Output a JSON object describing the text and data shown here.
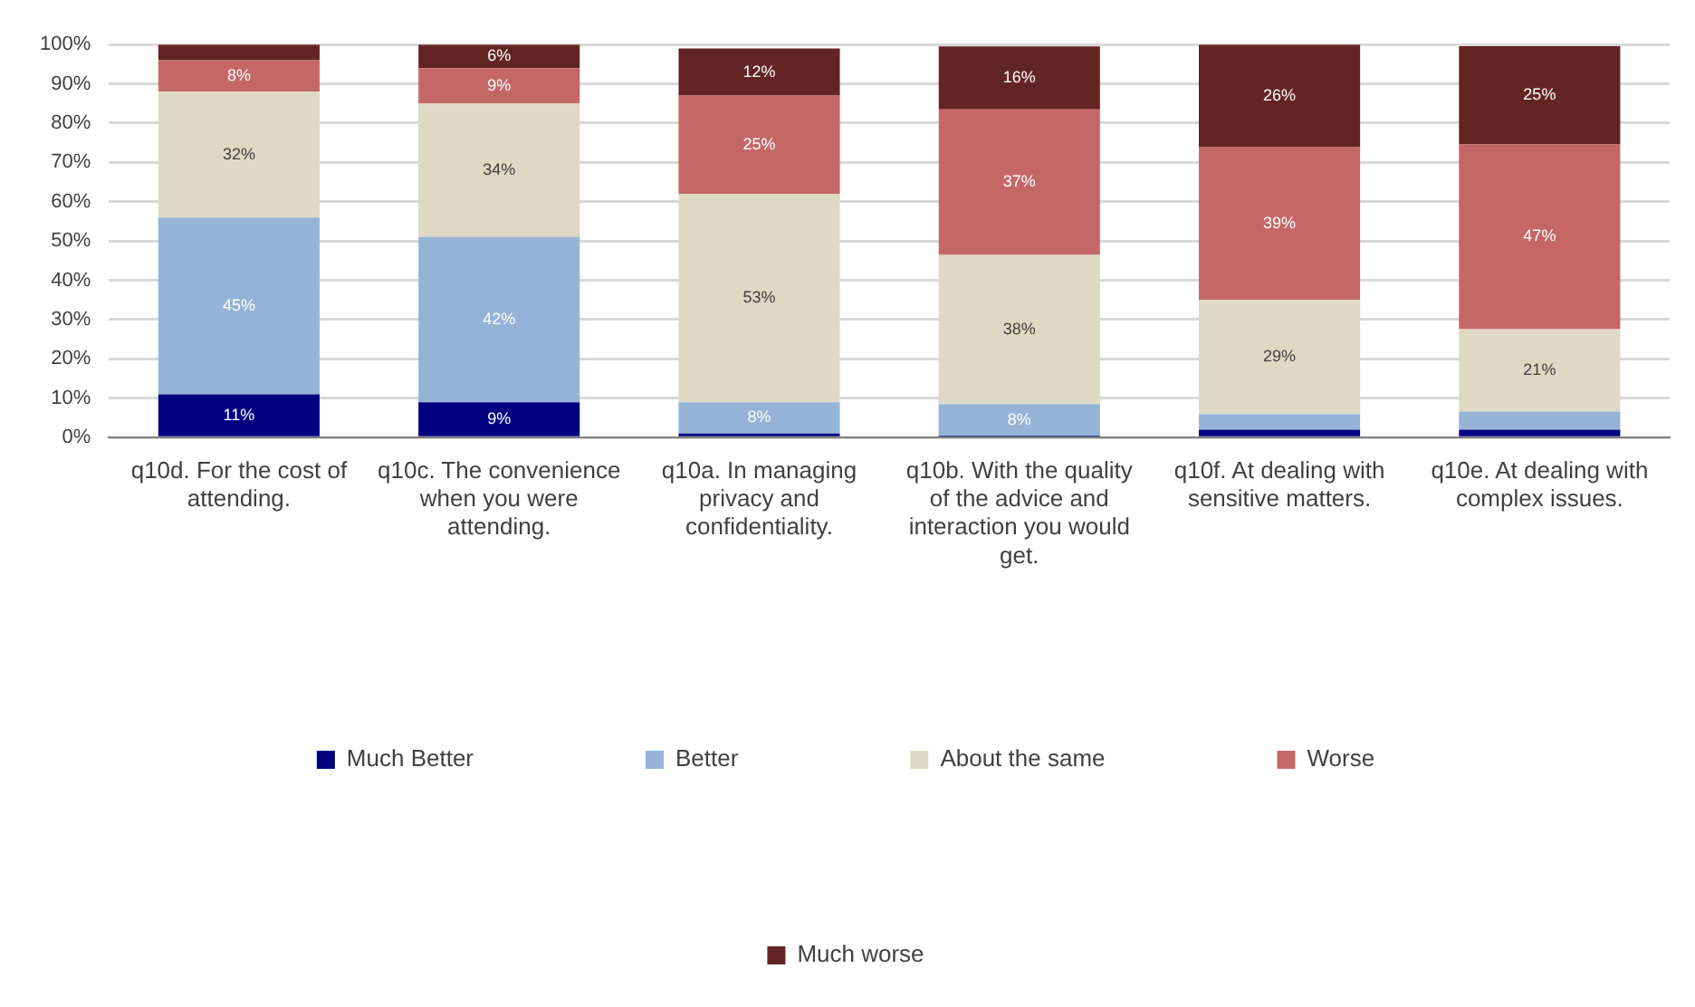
{
  "chart_data": {
    "type": "bar",
    "stacked": true,
    "categories": [
      "q10d. For the cost of attending.",
      "q10c. The convenience when you were attending.",
      "q10a. In managing privacy and confidentiality.",
      "q10b. With the quality of the advice and interaction you would get.",
      "q10f. At dealing with sensitive matters.",
      "q10e. At dealing with complex issues."
    ],
    "series": [
      {
        "name": "Much Better",
        "color": "#000080",
        "values": [
          11,
          9,
          1,
          0.5,
          2,
          2
        ],
        "value_labels": [
          "11%",
          "9%",
          null,
          null,
          null,
          null
        ]
      },
      {
        "name": "Better",
        "color": "#95b3d7",
        "values": [
          45,
          42,
          8,
          8,
          4,
          4.6
        ],
        "value_labels": [
          "45%",
          "42%",
          "8%",
          "8%",
          null,
          null
        ]
      },
      {
        "name": "About the same",
        "color": "#ddd9c3",
        "values": [
          32,
          34,
          53,
          38,
          29,
          21
        ],
        "value_labels": [
          "32%",
          "34%",
          "53%",
          "38%",
          "29%",
          "21%"
        ]
      },
      {
        "name": "Worse",
        "color": "#c66767",
        "values": [
          8,
          9,
          25,
          37,
          39,
          47
        ],
        "value_labels": [
          "8%",
          "9%",
          "25%",
          "37%",
          "39%",
          "47%"
        ]
      },
      {
        "name": "Much worse",
        "color": "#632523",
        "values": [
          4,
          6,
          12,
          16,
          26,
          25
        ],
        "value_labels": [
          null,
          "6%",
          "12%",
          "16%",
          "26%",
          "25%"
        ]
      }
    ],
    "ylim": [
      0,
      100
    ],
    "yticks": [
      {
        "value": 0,
        "label": "0%"
      },
      {
        "value": 10,
        "label": "10%"
      },
      {
        "value": 20,
        "label": "20%"
      },
      {
        "value": 30,
        "label": "30%"
      },
      {
        "value": 40,
        "label": "40%"
      },
      {
        "value": 50,
        "label": "50%"
      },
      {
        "value": 60,
        "label": "60%"
      },
      {
        "value": 70,
        "label": "70%"
      },
      {
        "value": 80,
        "label": "80%"
      },
      {
        "value": 90,
        "label": "90%"
      },
      {
        "value": 100,
        "label": "100%"
      }
    ],
    "grid": "y",
    "legend": "bottom"
  }
}
